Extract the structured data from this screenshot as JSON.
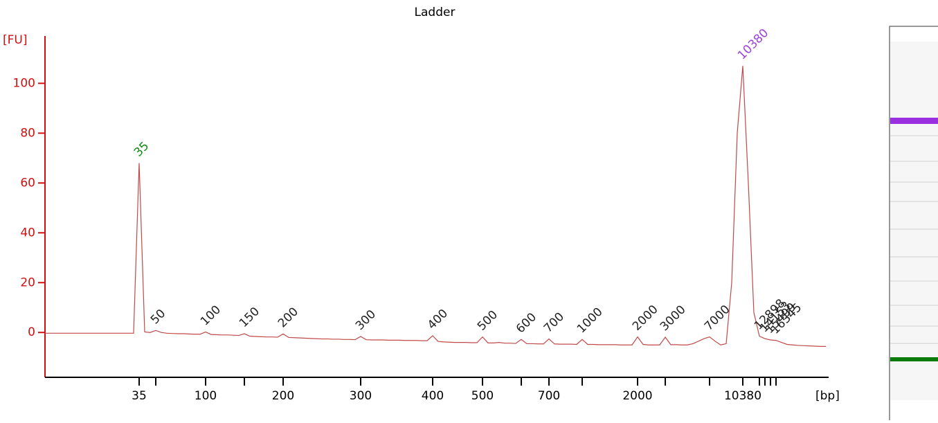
{
  "chart_data": {
    "type": "line",
    "title": "Ladder",
    "y_label": "[FU]",
    "x_label": "[bp]",
    "ylim": [
      -18,
      119
    ],
    "yticks": [
      0,
      20,
      40,
      60,
      80,
      100
    ],
    "axis_color": "#d01010",
    "peak_label_color": "#222222",
    "categories": [
      null,
      null,
      null,
      null,
      null,
      null,
      null,
      null,
      null,
      null,
      null,
      null,
      null,
      null,
      null,
      null,
      null,
      "35",
      null,
      null,
      null,
      null,
      null,
      null,
      null,
      null,
      null,
      null,
      null,
      "100",
      null,
      null,
      null,
      null,
      null,
      null,
      null,
      null,
      null,
      null,
      null,
      null,
      null,
      "200",
      null,
      null,
      null,
      null,
      null,
      null,
      null,
      null,
      null,
      null,
      null,
      null,
      null,
      "300",
      null,
      null,
      null,
      null,
      null,
      null,
      null,
      null,
      null,
      null,
      null,
      null,
      "400",
      null,
      null,
      null,
      null,
      null,
      null,
      null,
      null,
      "500",
      null,
      null,
      null,
      null,
      null,
      null,
      null,
      null,
      null,
      null,
      null,
      "700",
      null,
      null,
      null,
      null,
      null,
      null,
      null,
      null,
      null,
      null,
      null,
      null,
      null,
      null,
      null,
      "2000",
      null,
      null,
      null,
      null,
      null,
      null,
      null,
      null,
      null,
      null,
      null,
      null,
      null,
      null,
      null,
      null,
      null,
      null,
      "10380",
      null,
      null,
      null,
      null,
      null,
      null,
      null,
      null,
      null,
      null,
      null,
      null,
      null,
      null,
      null
    ],
    "series": [
      {
        "name": null,
        "color": "#c04848",
        "values": [
          -0.3,
          -0.3,
          -0.3,
          -0.3,
          -0.3,
          -0.3,
          -0.3,
          -0.3,
          -0.3,
          -0.3,
          -0.3,
          -0.3,
          -0.3,
          -0.3,
          -0.3,
          -0.3,
          -0.3,
          68,
          0.2,
          0,
          0.8,
          0,
          -0.3,
          -0.4,
          -0.5,
          -0.5,
          -0.6,
          -0.7,
          -0.7,
          0.2,
          -0.8,
          -0.9,
          -1,
          -1,
          -1.1,
          -1.2,
          -0.5,
          -1.5,
          -1.6,
          -1.7,
          -1.8,
          -1.8,
          -1.9,
          -0.6,
          -2,
          -2.1,
          -2.2,
          -2.3,
          -2.4,
          -2.5,
          -2.6,
          -2.6,
          -2.7,
          -2.7,
          -2.8,
          -2.8,
          -2.9,
          -1.6,
          -2.9,
          -3,
          -3,
          -3,
          -3.1,
          -3.1,
          -3.1,
          -3.2,
          -3.2,
          -3.2,
          -3.3,
          -3.3,
          -1.3,
          -3.6,
          -3.8,
          -3.9,
          -4,
          -4,
          -4,
          -4.1,
          -4.1,
          -1.8,
          -4.2,
          -4.2,
          -4,
          -4.3,
          -4.3,
          -4.4,
          -2.8,
          -4.5,
          -4.5,
          -4.6,
          -4.6,
          -2.6,
          -4.6,
          -4.7,
          -4.7,
          -4.7,
          -4.8,
          -2.8,
          -4.8,
          -4.8,
          -4.9,
          -4.9,
          -4.9,
          -4.9,
          -5,
          -5,
          -5,
          -1.8,
          -4.8,
          -5,
          -5,
          -5,
          -1.9,
          -4.9,
          -4.9,
          -5,
          -5,
          -4.5,
          -3.5,
          -2.5,
          -1.8,
          -3.5,
          -5,
          -4.5,
          20,
          80,
          107,
          60,
          8,
          -1.5,
          -2.5,
          -3,
          -3.2,
          -4,
          -4.8,
          -5,
          -5.2,
          -5.3,
          -5.4,
          -5.5,
          -5.6,
          -5.6
        ]
      }
    ],
    "peak_labels": [
      null,
      null,
      null,
      null,
      null,
      null,
      null,
      null,
      null,
      null,
      null,
      null,
      null,
      null,
      null,
      null,
      null,
      "35",
      null,
      null,
      "50",
      null,
      null,
      null,
      null,
      null,
      null,
      null,
      null,
      "100",
      null,
      null,
      null,
      null,
      null,
      null,
      "150",
      null,
      null,
      null,
      null,
      null,
      null,
      "200",
      null,
      null,
      null,
      null,
      null,
      null,
      null,
      null,
      null,
      null,
      null,
      null,
      null,
      "300",
      null,
      null,
      null,
      null,
      null,
      null,
      null,
      null,
      null,
      null,
      null,
      null,
      "400",
      null,
      null,
      null,
      null,
      null,
      null,
      null,
      null,
      "500",
      null,
      null,
      null,
      null,
      null,
      null,
      "600",
      null,
      null,
      null,
      null,
      "700",
      null,
      null,
      null,
      null,
      null,
      "1000",
      null,
      null,
      null,
      null,
      null,
      null,
      null,
      null,
      null,
      "2000",
      null,
      null,
      null,
      null,
      "3000",
      null,
      null,
      null,
      null,
      null,
      null,
      null,
      "7000",
      null,
      null,
      null,
      null,
      null,
      "10380",
      null,
      null,
      "12898",
      "14153",
      "15499",
      "16345",
      null,
      null,
      null,
      null,
      null,
      null,
      null,
      null,
      null
    ],
    "peak_label_colors": [
      null,
      null,
      null,
      null,
      null,
      null,
      null,
      null,
      null,
      null,
      null,
      null,
      null,
      null,
      null,
      null,
      null,
      "#118811",
      null,
      null,
      null,
      null,
      null,
      null,
      null,
      null,
      null,
      null,
      null,
      null,
      null,
      null,
      null,
      null,
      null,
      null,
      null,
      null,
      null,
      null,
      null,
      null,
      null,
      null,
      null,
      null,
      null,
      null,
      null,
      null,
      null,
      null,
      null,
      null,
      null,
      null,
      null,
      null,
      null,
      null,
      null,
      null,
      null,
      null,
      null,
      null,
      null,
      null,
      null,
      null,
      null,
      null,
      null,
      null,
      null,
      null,
      null,
      null,
      null,
      null,
      null,
      null,
      null,
      null,
      null,
      null,
      null,
      null,
      null,
      null,
      null,
      null,
      null,
      null,
      null,
      null,
      null,
      null,
      null,
      null,
      null,
      null,
      null,
      null,
      null,
      null,
      null,
      null,
      null,
      null,
      null,
      null,
      null,
      null,
      null,
      null,
      null,
      null,
      null,
      null,
      null,
      null,
      null,
      null,
      null,
      null,
      "#a040e0",
      null,
      null,
      null,
      null,
      null,
      null,
      null,
      null,
      null,
      null,
      null,
      null,
      null,
      null,
      null
    ]
  }
}
